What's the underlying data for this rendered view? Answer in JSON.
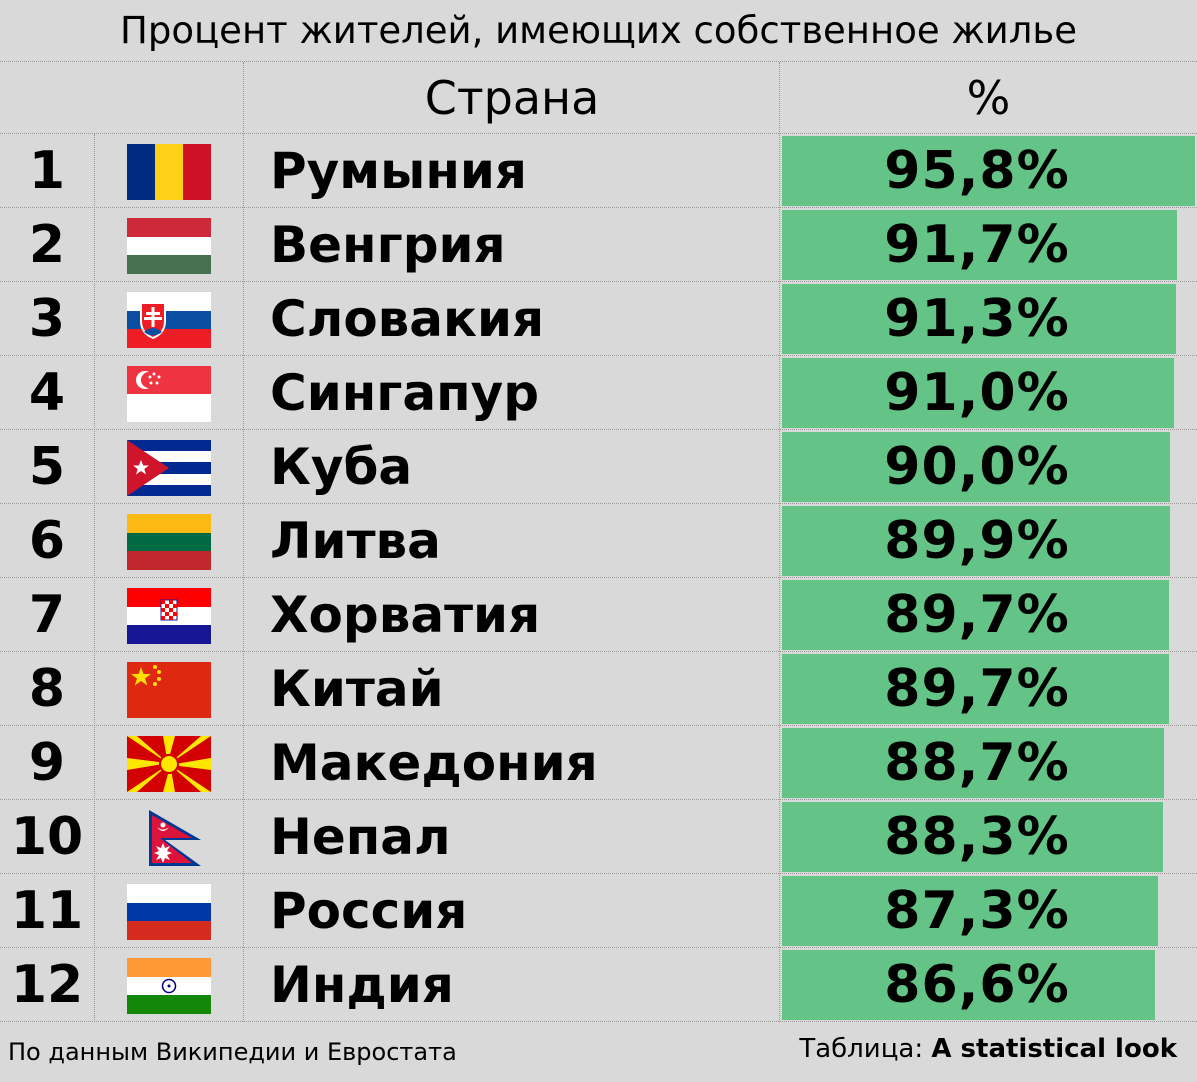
{
  "title": "Процент жителей, имеющих собственное жилье",
  "header": {
    "country": "Страна",
    "percent": "%"
  },
  "footer": {
    "source": "По данным Википедии и Евростата",
    "credit_label": "Таблица: ",
    "credit_name": "A statistical look"
  },
  "colors": {
    "bar": "#64c487",
    "background": "#d9d9d9"
  },
  "chart_data": {
    "type": "table",
    "title": "Процент жителей, имеющих собственное жилье",
    "columns": [
      "",
      "",
      "Страна",
      "%"
    ],
    "rows": [
      {
        "rank": "1",
        "flag": "romania-flag",
        "country": "Румыния",
        "value": 95.8,
        "label": "95,8%"
      },
      {
        "rank": "2",
        "flag": "hungary-flag",
        "country": "Венгрия",
        "value": 91.7,
        "label": "91,7%"
      },
      {
        "rank": "3",
        "flag": "slovakia-flag",
        "country": "Словакия",
        "value": 91.3,
        "label": "91,3%"
      },
      {
        "rank": "4",
        "flag": "singapore-flag",
        "country": "Сингапур",
        "value": 91.0,
        "label": "91,0%"
      },
      {
        "rank": "5",
        "flag": "cuba-flag",
        "country": "Куба",
        "value": 90.0,
        "label": "90,0%"
      },
      {
        "rank": "6",
        "flag": "lithuania-flag",
        "country": "Литва",
        "value": 89.9,
        "label": "89,9%"
      },
      {
        "rank": "7",
        "flag": "croatia-flag",
        "country": "Хорватия",
        "value": 89.7,
        "label": "89,7%"
      },
      {
        "rank": "8",
        "flag": "china-flag",
        "country": "Китай",
        "value": 89.7,
        "label": "89,7%"
      },
      {
        "rank": "9",
        "flag": "macedonia-flag",
        "country": "Македония",
        "value": 88.7,
        "label": "88,7%"
      },
      {
        "rank": "10",
        "flag": "nepal-flag",
        "country": "Непал",
        "value": 88.3,
        "label": "88,3%"
      },
      {
        "rank": "11",
        "flag": "russia-flag",
        "country": "Россия",
        "value": 87.3,
        "label": "87,3%"
      },
      {
        "rank": "12",
        "flag": "india-flag",
        "country": "Индия",
        "value": 86.6,
        "label": "86,6%"
      }
    ]
  }
}
